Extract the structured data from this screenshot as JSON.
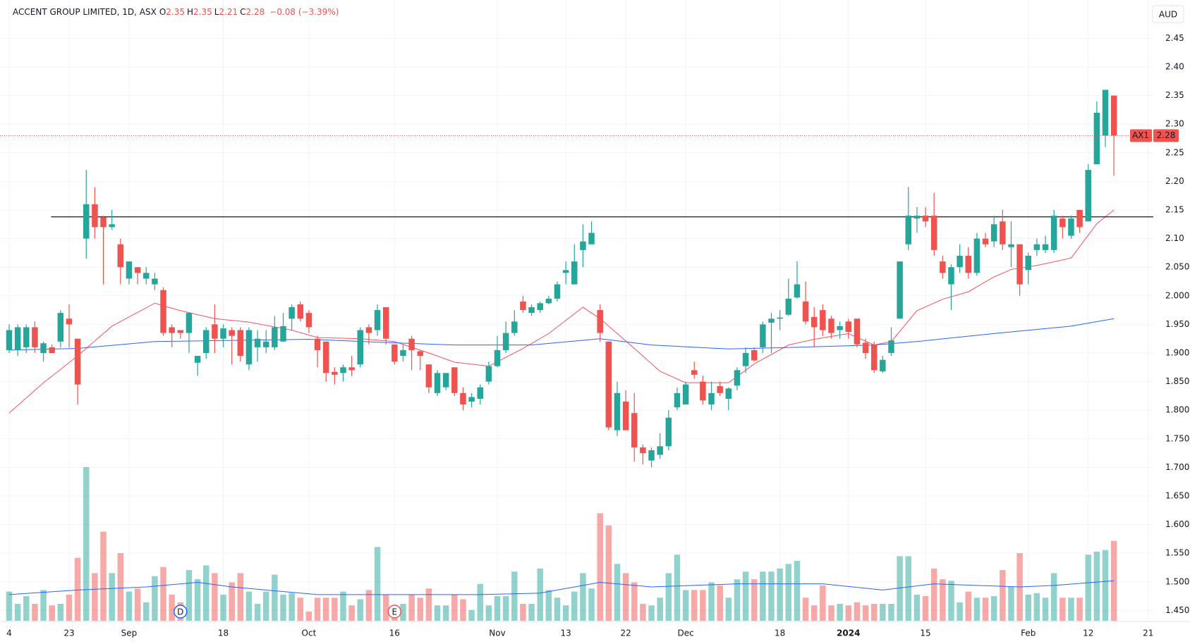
{
  "header": {
    "symbol": "ACCENT GROUP LIMITED, 1D, ASX",
    "fields": [
      {
        "label": "O",
        "value": "2.35"
      },
      {
        "label": "H",
        "value": "2.35"
      },
      {
        "label": "L",
        "value": "2.21"
      },
      {
        "label": "C",
        "value": "2.28"
      }
    ],
    "change": "−0.08 (−3.39%)"
  },
  "chart_data": {
    "type": "candlestick",
    "currency": "AUD",
    "xlim": [
      -1.07,
      133.6
    ],
    "ylim": [
      1.432,
      2.517
    ],
    "volume_ylim": [
      0,
      404
    ],
    "grid": true,
    "colors": {
      "up": "#26a69a",
      "down": "#ef5350",
      "up_volume": "#26a69a80",
      "down_volume": "#ef535080"
    },
    "xticks": [
      {
        "value": 0,
        "label": "4"
      },
      {
        "value": 7,
        "label": "23"
      },
      {
        "value": 14,
        "label": "Sep"
      },
      {
        "value": 25,
        "label": "18"
      },
      {
        "value": 35,
        "label": "Oct"
      },
      {
        "value": 45,
        "label": "16"
      },
      {
        "value": 57,
        "label": "Nov"
      },
      {
        "value": 65,
        "label": "13"
      },
      {
        "value": 72,
        "label": "22"
      },
      {
        "value": 79,
        "label": "Dec"
      },
      {
        "value": 90,
        "label": "18"
      },
      {
        "value": 98,
        "label": "2024"
      },
      {
        "value": 107,
        "label": "15"
      },
      {
        "value": 119,
        "label": "Feb"
      },
      {
        "value": 126,
        "label": "12"
      },
      {
        "value": 133,
        "label": "21"
      }
    ],
    "yticks": [
      2.45,
      {
        "value": 2.4,
        "label": "2.40"
      },
      2.35,
      {
        "value": 2.3,
        "label": "2.30"
      },
      2.25,
      {
        "value": 2.2,
        "label": "2.20"
      },
      2.15,
      {
        "value": 2.1,
        "label": "2.10"
      },
      {
        "value": 2.05,
        "label": "2.050"
      },
      {
        "value": 2,
        "label": "2.000"
      },
      {
        "value": 1.95,
        "label": "1.950"
      },
      {
        "value": 1.9,
        "label": "1.900"
      },
      {
        "value": 1.85,
        "label": "1.850"
      },
      {
        "value": 1.8,
        "label": "1.800"
      },
      {
        "value": 1.75,
        "label": "1.750"
      },
      {
        "value": 1.7,
        "label": "1.700"
      },
      {
        "value": 1.65,
        "label": "1.650"
      },
      {
        "value": 1.6,
        "label": "1.600"
      },
      {
        "value": 1.55,
        "label": "1.550"
      },
      {
        "value": 1.5,
        "label": "1.500"
      },
      {
        "value": 1.45,
        "label": "1.450"
      }
    ],
    "open": [
      1.905,
      1.905,
      1.91,
      1.945,
      1.9,
      1.91,
      1.92,
      1.96,
      1.925,
      2.1,
      2.16,
      2.137,
      2.12,
      2.09,
      2.03,
      2.05,
      2.03,
      2.02,
      2.01,
      1.945,
      1.94,
      1.935,
      1.883,
      1.9,
      1.95,
      1.925,
      1.94,
      1.94,
      1.88,
      1.91,
      1.91,
      1.91,
      1.92,
      1.96,
      1.985,
      1.97,
      1.925,
      1.92,
      1.867,
      1.865,
      1.875,
      1.88,
      1.945,
      1.94,
      1.98,
      1.915,
      1.895,
      1.925,
      1.903,
      1.88,
      1.83,
      1.84,
      1.875,
      1.83,
      1.815,
      1.82,
      1.85,
      1.877,
      1.905,
      1.935,
      1.99,
      1.97,
      1.975,
      1.987,
      1.995,
      2.04,
      2.02,
      2.08,
      2.09,
      1.975,
      1.92,
      1.765,
      1.815,
      1.795,
      1.735,
      1.712,
      1.722,
      1.737,
      1.805,
      1.81,
      1.87,
      1.85,
      1.81,
      1.842,
      1.82,
      1.843,
      1.877,
      1.905,
      1.91,
      1.953,
      1.96,
      1.967,
      1.997,
      1.99,
      1.963,
      1.975,
      1.96,
      1.94,
      1.955,
      1.96,
      1.918,
      1.915,
      1.868,
      1.9,
      1.96,
      2.09,
      2.135,
      2.14,
      2.14,
      2.06,
      2.02,
      2.05,
      2.07,
      2.04,
      2.1,
      2.095,
      2.13,
      2.085,
      2.09,
      2.045,
      2.08,
      2.08,
      2.08,
      2.135,
      2.105,
      2.15,
      2.13,
      2.23,
      2.28,
      2.35
    ],
    "high": [
      1.95,
      1.95,
      1.95,
      1.955,
      1.92,
      1.915,
      1.975,
      1.985,
      1.925,
      2.22,
      2.19,
      2.14,
      2.15,
      2.1,
      2.06,
      2.05,
      2.05,
      2.04,
      2.015,
      1.95,
      1.94,
      1.97,
      1.895,
      1.945,
      1.985,
      1.95,
      1.945,
      1.945,
      1.945,
      1.94,
      1.94,
      1.965,
      1.97,
      1.985,
      1.99,
      1.975,
      1.93,
      1.92,
      1.875,
      1.88,
      1.895,
      1.945,
      1.95,
      1.985,
      1.98,
      1.915,
      1.915,
      1.93,
      1.905,
      1.88,
      1.87,
      1.865,
      1.875,
      1.84,
      1.83,
      1.845,
      1.885,
      1.93,
      1.955,
      1.975,
      2.0,
      1.985,
      1.99,
      2.0,
      2.025,
      2.06,
      2.09,
      2.125,
      2.13,
      1.985,
      1.92,
      1.85,
      1.835,
      1.83,
      1.74,
      1.735,
      1.76,
      1.8,
      1.84,
      1.85,
      1.885,
      1.86,
      1.85,
      1.85,
      1.84,
      1.875,
      1.91,
      1.91,
      1.955,
      1.97,
      1.975,
      2.03,
      2.06,
      2.025,
      1.98,
      1.985,
      1.965,
      1.955,
      1.96,
      1.96,
      1.925,
      1.92,
      1.895,
      1.945,
      2.06,
      2.19,
      2.155,
      2.155,
      2.18,
      2.07,
      2.055,
      2.09,
      2.085,
      2.11,
      2.11,
      2.14,
      2.15,
      2.13,
      2.09,
      2.075,
      2.1,
      2.105,
      2.15,
      2.14,
      2.14,
      2.15,
      2.23,
      2.34,
      2.36,
      2.35
    ],
    "low": [
      1.9,
      1.895,
      1.9,
      1.9,
      1.885,
      1.9,
      1.91,
      1.91,
      1.81,
      2.065,
      2.1,
      2.02,
      2.115,
      2.02,
      2.02,
      2.02,
      2.02,
      2.01,
      1.93,
      1.91,
      1.925,
      1.9,
      1.86,
      1.89,
      1.9,
      1.91,
      1.88,
      1.885,
      1.87,
      1.885,
      1.9,
      1.905,
      1.92,
      1.94,
      1.955,
      1.935,
      1.875,
      1.85,
      1.845,
      1.85,
      1.86,
      1.875,
      1.915,
      1.93,
      1.915,
      1.88,
      1.885,
      1.87,
      1.87,
      1.83,
      1.825,
      1.835,
      1.825,
      1.8,
      1.805,
      1.81,
      1.845,
      1.875,
      1.9,
      1.93,
      1.97,
      1.965,
      1.97,
      1.985,
      1.99,
      2.02,
      2.02,
      2.05,
      2.09,
      1.92,
      1.765,
      1.755,
      1.765,
      1.71,
      1.705,
      1.7,
      1.715,
      1.73,
      1.8,
      1.81,
      1.855,
      1.81,
      1.8,
      1.825,
      1.8,
      1.835,
      1.865,
      1.885,
      1.9,
      1.9,
      1.94,
      1.965,
      1.995,
      1.95,
      1.91,
      1.93,
      1.925,
      1.925,
      1.925,
      1.91,
      1.89,
      1.865,
      1.865,
      1.895,
      1.96,
      2.08,
      2.11,
      2.12,
      2.07,
      2.03,
      1.975,
      2.04,
      2.03,
      2.035,
      2.085,
      2.085,
      2.08,
      2.05,
      2.0,
      2.02,
      2.07,
      2.075,
      2.075,
      2.1,
      2.1,
      2.11,
      2.13,
      2.23,
      2.26,
      2.21
    ],
    "close": [
      1.94,
      1.945,
      1.945,
      1.91,
      1.917,
      1.9,
      1.97,
      1.95,
      1.845,
      2.16,
      2.12,
      2.12,
      2.125,
      2.05,
      2.06,
      2.04,
      2.04,
      2.03,
      1.935,
      1.935,
      1.935,
      1.97,
      1.895,
      1.94,
      1.925,
      1.943,
      1.93,
      1.895,
      1.94,
      1.925,
      1.92,
      1.945,
      1.947,
      1.98,
      1.96,
      1.945,
      1.905,
      1.865,
      1.862,
      1.875,
      1.87,
      1.94,
      1.935,
      1.975,
      1.925,
      1.885,
      1.905,
      1.905,
      1.895,
      1.84,
      1.865,
      1.865,
      1.83,
      1.81,
      1.823,
      1.84,
      1.877,
      1.905,
      1.935,
      1.955,
      1.975,
      1.98,
      1.987,
      1.995,
      2.02,
      2.045,
      2.06,
      2.095,
      2.11,
      1.935,
      1.77,
      1.83,
      1.765,
      1.735,
      1.725,
      1.73,
      1.737,
      1.787,
      1.83,
      1.845,
      1.862,
      1.817,
      1.83,
      1.83,
      1.838,
      1.87,
      1.9,
      1.887,
      1.95,
      1.96,
      1.962,
      1.995,
      2.02,
      1.955,
      1.945,
      1.94,
      1.935,
      1.947,
      1.937,
      1.915,
      1.9,
      1.87,
      1.888,
      1.922,
      2.06,
      2.14,
      2.14,
      2.13,
      2.08,
      2.04,
      2.05,
      2.07,
      2.04,
      2.1,
      2.09,
      2.125,
      2.09,
      2.09,
      2.02,
      2.07,
      2.09,
      2.09,
      2.14,
      2.12,
      2.135,
      2.12,
      2.22,
      2.32,
      2.36,
      2.28
    ],
    "volume": [
      19,
      11,
      16,
      11,
      20,
      10,
      11,
      17,
      41,
      100,
      31,
      58,
      31,
      44,
      19,
      21,
      12,
      29,
      35,
      17,
      12,
      33,
      27,
      36,
      31,
      17,
      25,
      31,
      19,
      11,
      19,
      30,
      17,
      18,
      15,
      6,
      15,
      15,
      15,
      19,
      10,
      14,
      20,
      48,
      17,
      10,
      11,
      17,
      15,
      21,
      10,
      10,
      17,
      14,
      7,
      24,
      10,
      16,
      16,
      32,
      11,
      11,
      34,
      20,
      15,
      10,
      19,
      31,
      21,
      70,
      62,
      37,
      31,
      25,
      11,
      10,
      15,
      31,
      43,
      20,
      20,
      20,
      25,
      23,
      15,
      27,
      32,
      27,
      32,
      32,
      34,
      37,
      39,
      15,
      10,
      23,
      10,
      11,
      10,
      12,
      10,
      11,
      11,
      11,
      42,
      42,
      17,
      16,
      34,
      27,
      26,
      12,
      19,
      15,
      15,
      16,
      33,
      22,
      44,
      17,
      18,
      15,
      31,
      15,
      15,
      15,
      43,
      45,
      46,
      52
    ],
    "lines": [
      {
        "color": "#f7525f",
        "panel": "price",
        "x": [
          0,
          4,
          8,
          12,
          17,
          20,
          24,
          28,
          33,
          36,
          41,
          45,
          49,
          52,
          56,
          60,
          63,
          67,
          69,
          73,
          76,
          79,
          84,
          87,
          91,
          94,
          98,
          101,
          103,
          106,
          109,
          112,
          115,
          117,
          120,
          124,
          125,
          127,
          129
        ],
        "values": [
          1.795,
          1.848,
          1.895,
          1.947,
          1.987,
          1.974,
          1.96,
          1.954,
          1.94,
          1.927,
          1.925,
          1.92,
          1.9,
          1.884,
          1.877,
          1.908,
          1.934,
          1.98,
          1.96,
          1.908,
          1.868,
          1.848,
          1.848,
          1.881,
          1.914,
          1.924,
          1.934,
          1.914,
          1.92,
          1.974,
          1.994,
          2.007,
          2.033,
          2.046,
          2.053,
          2.066,
          2.086,
          2.126,
          2.15
        ]
      },
      {
        "color": "#2962ff",
        "panel": "price",
        "x": [
          0,
          8,
          17,
          26,
          35,
          43,
          52,
          61,
          69,
          75,
          84,
          92,
          101,
          106,
          115,
          124,
          129
        ],
        "values": [
          1.905,
          1.908,
          1.92,
          1.922,
          1.924,
          1.919,
          1.914,
          1.914,
          1.925,
          1.914,
          1.907,
          1.91,
          1.914,
          1.92,
          1.934,
          1.947,
          1.96
        ]
      },
      {
        "color": "#2962ff",
        "panel": "volume",
        "x": [
          0,
          8,
          16,
          22,
          26,
          30,
          36,
          45,
          55,
          62,
          69,
          75,
          85,
          95,
          102,
          108,
          118,
          122,
          129
        ],
        "values": [
          17,
          20,
          22,
          25,
          22,
          20,
          17,
          17,
          17,
          18,
          25,
          22,
          24,
          24,
          20,
          24,
          22,
          23,
          26
        ]
      }
    ],
    "horizontal_line": {
      "value": 2.138,
      "x_start": 4.9,
      "color": "#131722"
    },
    "price_line_label": "AX1",
    "events": [
      {
        "x": 20,
        "label": "D",
        "color": "#2962ff"
      },
      {
        "x": 45,
        "label": "E",
        "color": "#ef5350"
      }
    ]
  }
}
